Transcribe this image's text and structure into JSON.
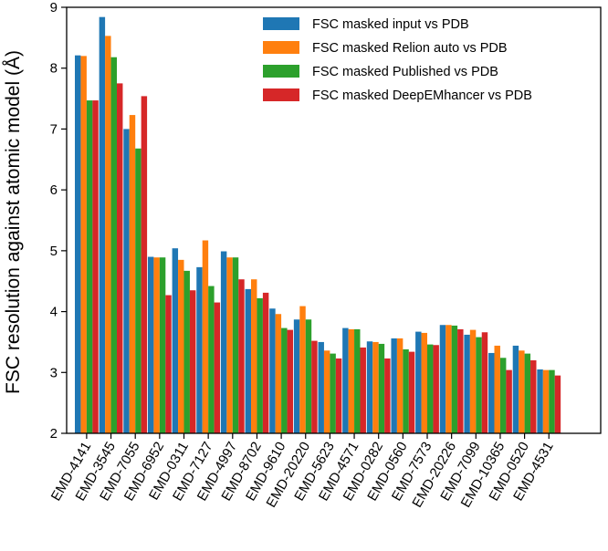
{
  "chart_data": {
    "type": "bar",
    "title": "",
    "xlabel": "",
    "ylabel": "FSC resolution against atomic model (Å)",
    "ylim": [
      2,
      9
    ],
    "yticks": [
      "2",
      "3",
      "4",
      "5",
      "6",
      "7",
      "8",
      "9"
    ],
    "grid": false,
    "legend_position": "top-right",
    "categories": [
      "EMD-4141",
      "EMD-3545",
      "EMD-7055",
      "EMD-6952",
      "EMD-0311",
      "EMD-7127",
      "EMD-4997",
      "EMD-8702",
      "EMD-9610",
      "EMD-20220",
      "EMD-5623",
      "EMD-4571",
      "EMD-0282",
      "EMD-0560",
      "EMD-7573",
      "EMD-20226",
      "EMD-7099",
      "EMD-10365",
      "EMD-0520",
      "EMD-4531"
    ],
    "series": [
      {
        "name": "FSC masked input vs PDB",
        "color": "#1f77b4",
        "values": [
          8.21,
          8.84,
          7.0,
          4.9,
          5.04,
          4.73,
          4.99,
          4.37,
          4.05,
          3.87,
          3.5,
          3.73,
          3.51,
          3.56,
          3.67,
          3.78,
          3.62,
          3.32,
          3.44,
          3.05
        ]
      },
      {
        "name": "FSC masked Relion auto vs PDB",
        "color": "#ff7f0e",
        "values": [
          8.2,
          8.53,
          7.23,
          4.89,
          4.85,
          5.17,
          4.89,
          4.53,
          3.96,
          4.09,
          3.36,
          3.71,
          3.5,
          3.56,
          3.65,
          3.78,
          3.7,
          3.44,
          3.36,
          3.04
        ]
      },
      {
        "name": "FSC masked Published vs PDB",
        "color": "#2ca02c",
        "values": [
          7.47,
          8.18,
          6.68,
          4.89,
          4.67,
          4.42,
          4.89,
          4.22,
          3.73,
          3.87,
          3.31,
          3.71,
          3.47,
          3.38,
          3.46,
          3.77,
          3.58,
          3.24,
          3.31,
          3.04
        ]
      },
      {
        "name": "FSC masked DeepEMhancer vs PDB",
        "color": "#d62728",
        "values": [
          7.47,
          7.75,
          7.54,
          4.27,
          4.35,
          4.15,
          4.53,
          4.31,
          3.7,
          3.52,
          3.23,
          3.41,
          3.23,
          3.34,
          3.45,
          3.71,
          3.66,
          3.04,
          3.2,
          2.95
        ]
      }
    ]
  }
}
